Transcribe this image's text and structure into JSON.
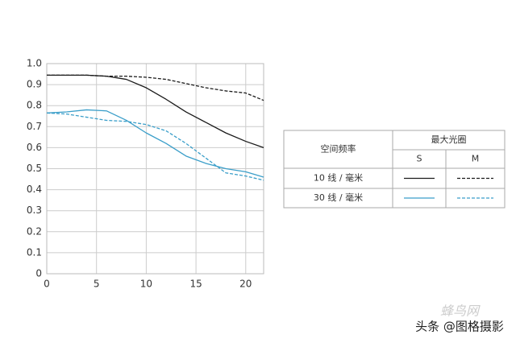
{
  "chart_data": {
    "type": "line",
    "x": [
      0,
      2,
      4,
      6,
      8,
      10,
      12,
      14,
      16,
      18,
      20,
      21.8
    ],
    "series": [
      {
        "color": "#1a1a1a",
        "dash": false,
        "values": [
          0.945,
          0.945,
          0.945,
          0.94,
          0.925,
          0.885,
          0.83,
          0.77,
          0.72,
          0.67,
          0.63,
          0.6
        ]
      },
      {
        "color": "#1a1a1a",
        "dash": true,
        "values": [
          0.945,
          0.945,
          0.945,
          0.94,
          0.94,
          0.935,
          0.925,
          0.905,
          0.885,
          0.87,
          0.86,
          0.825
        ]
      },
      {
        "color": "#3a9ec9",
        "dash": false,
        "values": [
          0.765,
          0.77,
          0.78,
          0.775,
          0.73,
          0.67,
          0.62,
          0.56,
          0.525,
          0.5,
          0.485,
          0.46
        ]
      },
      {
        "color": "#3a9ec9",
        "dash": true,
        "values": [
          0.765,
          0.76,
          0.745,
          0.73,
          0.725,
          0.71,
          0.68,
          0.62,
          0.55,
          0.48,
          0.465,
          0.445
        ]
      }
    ],
    "xlim": [
      0,
      21.8
    ],
    "xticks": [
      0,
      5,
      10,
      15,
      20
    ],
    "ylim": [
      0,
      1
    ],
    "yticks": [
      0,
      0.1,
      0.2,
      0.3,
      0.4,
      0.5,
      0.6,
      0.7,
      0.8,
      0.9,
      {
        "value": 1,
        "label": "1.0"
      }
    ],
    "grid": true,
    "legend_table": {
      "row_header": "空间频率",
      "group_header": "最大光圈",
      "columns": [
        "S",
        "M"
      ],
      "rows": [
        "10 线 / 毫米",
        "30 线 / 毫米"
      ]
    }
  },
  "watermark": {
    "site": "蜂鸟网",
    "credit": "头条 @图格摄影"
  }
}
